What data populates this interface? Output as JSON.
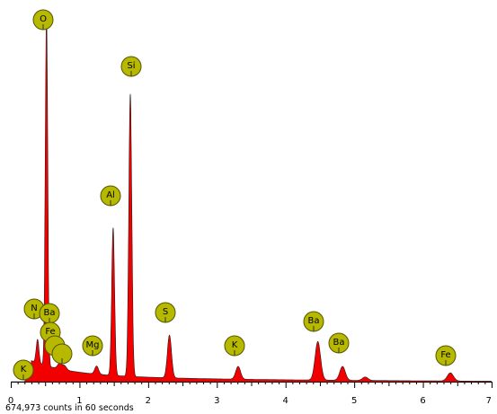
{
  "chart_data": {
    "type": "area",
    "title": "",
    "xlabel": "",
    "ylabel": "",
    "xlim": [
      0,
      7
    ],
    "ylim": [
      0,
      175000
    ],
    "x_ticks": [
      "0",
      "1",
      "2",
      "3",
      "4",
      "5",
      "6",
      "7"
    ],
    "grid": false,
    "colors": {
      "fill": "#f20000",
      "outline": "#202020",
      "marker": "#b7b800",
      "marker_border": "#555500"
    },
    "spectrum_peaks": [
      {
        "element": "O",
        "energy_kev": 0.52,
        "counts": 165000,
        "width": 0.018
      },
      {
        "element": "Si",
        "energy_kev": 1.74,
        "counts": 132000,
        "width": 0.022
      },
      {
        "element": "Al",
        "energy_kev": 1.49,
        "counts": 69000,
        "width": 0.021
      },
      {
        "element": "N",
        "energy_kev": 0.39,
        "counts": 11000,
        "width": 0.02
      },
      {
        "element": "Fe",
        "energy_kev": 0.71,
        "counts": 2500,
        "width": 0.03
      },
      {
        "element": "Ba",
        "energy_kev": 0.78,
        "counts": 2000,
        "width": 0.03
      },
      {
        "element": "Mg",
        "energy_kev": 1.25,
        "counts": 3800,
        "width": 0.028
      },
      {
        "element": "S",
        "energy_kev": 2.31,
        "counts": 20000,
        "width": 0.03
      },
      {
        "element": "K",
        "energy_kev": 3.31,
        "counts": 6000,
        "width": 0.035
      },
      {
        "element": "Ba",
        "energy_kev": 4.47,
        "counts": 18000,
        "width": 0.04
      },
      {
        "element": "Ba",
        "energy_kev": 4.83,
        "counts": 6500,
        "width": 0.04
      },
      {
        "element": "Ba",
        "energy_kev": 5.16,
        "counts": 1600,
        "width": 0.04
      },
      {
        "element": "Fe",
        "energy_kev": 6.4,
        "counts": 3800,
        "width": 0.045
      }
    ],
    "element_markers": [
      {
        "label": "O",
        "energy_kev": 0.52
      },
      {
        "label": "Si",
        "energy_kev": 1.74
      },
      {
        "label": "Al",
        "energy_kev": 1.49
      },
      {
        "label": "N",
        "energy_kev": 0.39
      },
      {
        "label": "Ba",
        "energy_kev": 0.55
      },
      {
        "label": "Fe",
        "energy_kev": 0.57
      },
      {
        "label": "",
        "energy_kev": 0.66
      },
      {
        "label": "",
        "energy_kev": 0.76
      },
      {
        "label": "K",
        "energy_kev": 0.25
      },
      {
        "label": "Mg",
        "energy_kev": 1.25
      },
      {
        "label": "S",
        "energy_kev": 2.31
      },
      {
        "label": "K",
        "energy_kev": 3.31
      },
      {
        "label": "Ba",
        "energy_kev": 4.47
      },
      {
        "label": "Ba",
        "energy_kev": 4.83
      },
      {
        "label": "Fe",
        "energy_kev": 6.4
      }
    ]
  },
  "footer": {
    "counts_text": "674,973 counts in 60 seconds"
  }
}
